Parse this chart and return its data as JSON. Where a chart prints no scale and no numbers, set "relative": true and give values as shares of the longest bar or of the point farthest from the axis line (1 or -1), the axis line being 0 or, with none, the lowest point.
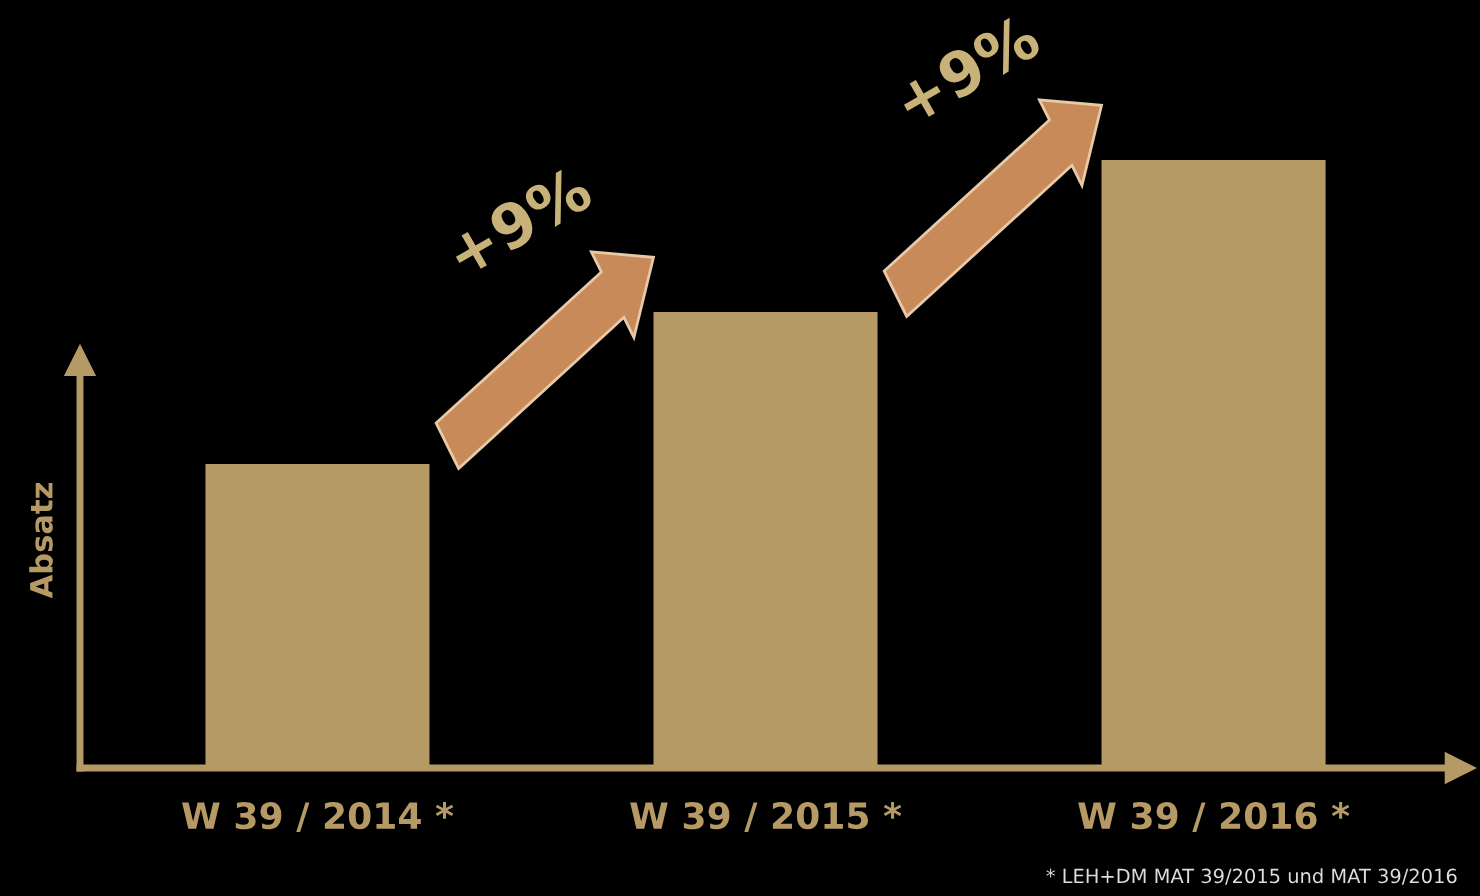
{
  "chart_data": {
    "type": "bar",
    "relative": true,
    "ylabel": "Absatz",
    "categories": [
      "W 39 / 2014 *",
      "W 39 / 2015 *",
      "W 39 / 2016 *"
    ],
    "values": [
      0.5,
      0.75,
      1.0
    ],
    "color": "#b59a66",
    "annotations": [
      "+9%",
      "+9%",
      "* LEH+DM MAT 39/2015 und MAT 39/2016"
    ],
    "grid": false
  }
}
